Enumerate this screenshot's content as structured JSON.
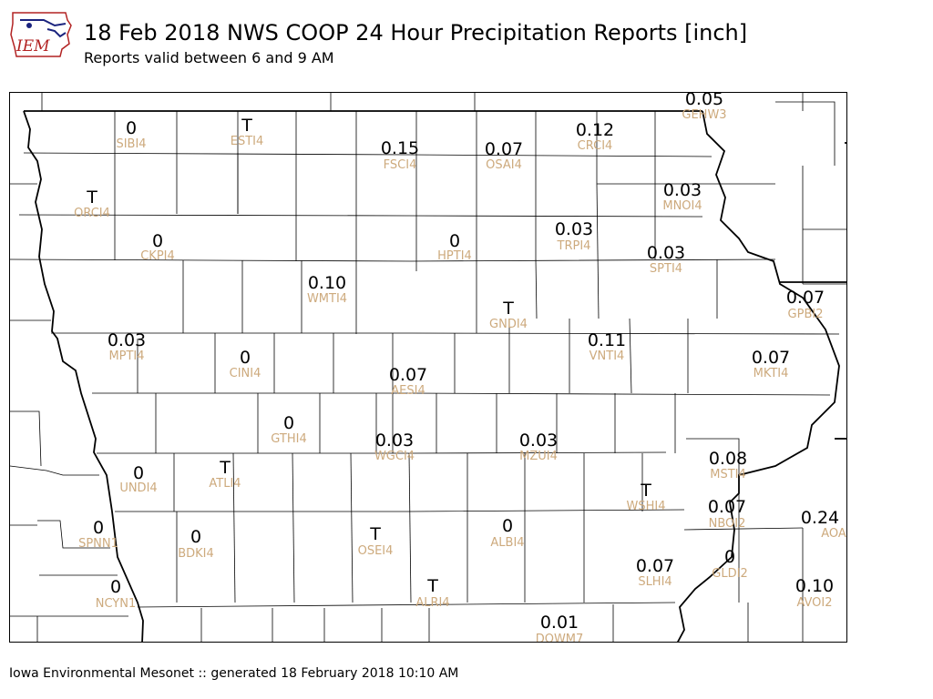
{
  "header": {
    "logo_text": "IEM",
    "title": "18 Feb 2018 NWS COOP 24 Hour Precipitation Reports [inch]",
    "subtitle": "Reports valid between 6 and 9 AM"
  },
  "footer": {
    "text": "Iowa Environmental Mesonet :: generated 18 February 2018 10:10 AM"
  },
  "colors": {
    "value_text": "#000000",
    "station_text": "#cdaa7d",
    "county_lines": "#000000",
    "logo_blue": "#1a237e",
    "logo_red": "#b22222"
  },
  "stations": [
    {
      "id": "SIBI4",
      "value": "0"
    },
    {
      "id": "ESTI4",
      "value": "T"
    },
    {
      "id": "FSCI4",
      "value": "0.15"
    },
    {
      "id": "OSAI4",
      "value": "0.07"
    },
    {
      "id": "CRCI4",
      "value": "0.12"
    },
    {
      "id": "GEHW3",
      "value": "0.05"
    },
    {
      "id": "ORCI4",
      "value": "T"
    },
    {
      "id": "MNOI4",
      "value": "0.03"
    },
    {
      "id": "CKPI4",
      "value": "0"
    },
    {
      "id": "HPTI4",
      "value": "0"
    },
    {
      "id": "TRPI4",
      "value": "0.03"
    },
    {
      "id": "SPTI4",
      "value": "0.03"
    },
    {
      "id": "WMTI4",
      "value": "0.10"
    },
    {
      "id": "GNDI4",
      "value": "T"
    },
    {
      "id": "GPBI2",
      "value": "0.07"
    },
    {
      "id": "MPTI4",
      "value": "0.03"
    },
    {
      "id": "CINI4",
      "value": "0"
    },
    {
      "id": "VNTI4",
      "value": "0.11"
    },
    {
      "id": "MKTI4",
      "value": "0.07"
    },
    {
      "id": "AESI4",
      "value": "0.07"
    },
    {
      "id": "GTHI4",
      "value": "0"
    },
    {
      "id": "WGCI4",
      "value": "0.03"
    },
    {
      "id": "MZUI4",
      "value": "0.03"
    },
    {
      "id": "MSTI4",
      "value": "0.08"
    },
    {
      "id": "UNDI4",
      "value": "0"
    },
    {
      "id": "ATLI4",
      "value": "T"
    },
    {
      "id": "WSHI4",
      "value": "T"
    },
    {
      "id": "NBOI2",
      "value": "0.07"
    },
    {
      "id": "AOA",
      "value": "0.24"
    },
    {
      "id": "SPNN1",
      "value": "0"
    },
    {
      "id": "BDKI4",
      "value": "0"
    },
    {
      "id": "OSEI4",
      "value": "T"
    },
    {
      "id": "ALBI4",
      "value": "0"
    },
    {
      "id": "SLHI4",
      "value": "0.07"
    },
    {
      "id": "GLDI2",
      "value": "0"
    },
    {
      "id": "AVOI2",
      "value": "0.10"
    },
    {
      "id": "NCYN1",
      "value": "0"
    },
    {
      "id": "ALRI4",
      "value": "T"
    },
    {
      "id": "DOWM7",
      "value": "0.01"
    }
  ]
}
